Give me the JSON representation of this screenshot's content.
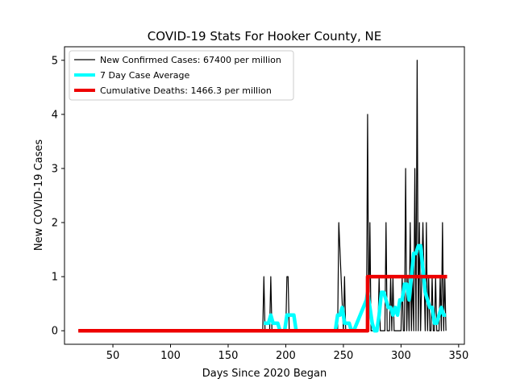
{
  "chart_data": {
    "type": "line",
    "title": "COVID-19 Stats For Hooker County, NE",
    "xlabel": "Days Since 2020 Began",
    "ylabel": "New COVID-19 Cases",
    "xlim": [
      8,
      355
    ],
    "ylim": [
      -0.25,
      5.25
    ],
    "xticks": [
      50,
      100,
      150,
      200,
      250,
      300,
      350
    ],
    "yticks": [
      0,
      1,
      2,
      3,
      4,
      5
    ],
    "grid": false,
    "legend_position": "top-left",
    "series": [
      {
        "name": "New Confirmed Cases: 67400 per million",
        "color": "#000000",
        "style": "thin",
        "x": [
          20,
          180,
          181,
          182,
          186,
          187,
          188,
          200,
          201,
          202,
          203,
          204,
          244,
          245,
          246,
          250,
          251,
          252,
          269,
          270,
          271,
          272,
          273,
          274,
          280,
          281,
          282,
          286,
          287,
          288,
          290,
          291,
          292,
          293,
          294,
          295,
          300,
          301,
          302,
          303,
          304,
          305,
          306,
          307,
          308,
          309,
          310,
          311,
          312,
          313,
          314,
          315,
          316,
          317,
          318,
          319,
          320,
          321,
          322,
          323,
          324,
          325,
          326,
          327,
          328,
          329,
          330,
          331,
          332,
          333,
          334,
          335,
          336,
          337,
          338,
          339
        ],
        "y": [
          0,
          0,
          1,
          0,
          0,
          1,
          0,
          0,
          1,
          1,
          0,
          0,
          0,
          0,
          2,
          0,
          1,
          0,
          0,
          0,
          4,
          0,
          2,
          0,
          0,
          1,
          0,
          0,
          2,
          0,
          0,
          1,
          0,
          1,
          0,
          0,
          0,
          1,
          0,
          0,
          3,
          0,
          1,
          0,
          2,
          0,
          1,
          0,
          3,
          0,
          5,
          0,
          2,
          0,
          1,
          2,
          1,
          0,
          2,
          0,
          1,
          0,
          0,
          1,
          0,
          0,
          1,
          0,
          0,
          0,
          1,
          0,
          2,
          0,
          1,
          0
        ]
      },
      {
        "name": "7 Day Case Average",
        "color": "#00ffff",
        "style": "thick",
        "x": [
          181,
          183,
          185,
          187,
          189,
          191,
          193,
          195,
          197,
          199,
          201,
          203,
          205,
          207,
          209,
          211,
          243,
          245,
          247,
          249,
          251,
          253,
          255,
          257,
          259,
          270,
          271,
          273,
          275,
          277,
          279,
          281,
          283,
          285,
          287,
          289,
          291,
          293,
          295,
          297,
          299,
          301,
          303,
          305,
          307,
          309,
          311,
          313,
          315,
          317,
          319,
          321,
          323,
          325,
          327,
          329,
          331,
          333,
          335,
          337,
          339
        ],
        "y": [
          0.14,
          0.14,
          0.14,
          0.29,
          0.14,
          0.14,
          0.14,
          0.0,
          0.0,
          0.0,
          0.29,
          0.29,
          0.29,
          0.29,
          0.0,
          0.0,
          0.0,
          0.29,
          0.29,
          0.43,
          0.14,
          0.14,
          0.14,
          0.0,
          0.0,
          0.57,
          0.71,
          0.43,
          0.14,
          0.0,
          0.0,
          0.29,
          0.71,
          0.71,
          0.57,
          0.43,
          0.43,
          0.29,
          0.43,
          0.29,
          0.57,
          0.57,
          0.86,
          0.86,
          0.57,
          1.0,
          1.43,
          1.43,
          1.57,
          1.57,
          1.14,
          0.71,
          0.57,
          0.43,
          0.43,
          0.14,
          0.14,
          0.29,
          0.43,
          0.29,
          0.29
        ]
      },
      {
        "name": "Cumulative Deaths: 1466.3 per million",
        "color": "#ee0000",
        "style": "thick",
        "x": [
          20,
          271,
          271,
          340
        ],
        "y": [
          0,
          0,
          1,
          1
        ]
      }
    ]
  }
}
